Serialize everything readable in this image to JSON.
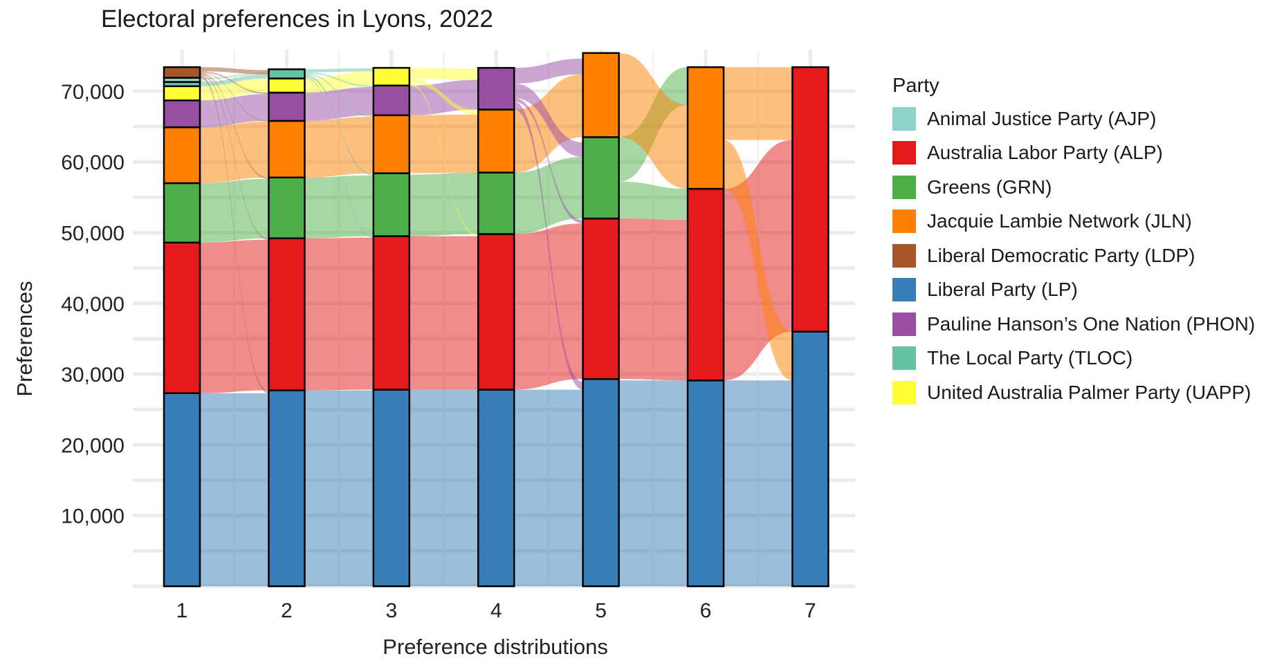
{
  "chart_data": {
    "type": "alluvial",
    "title": "Electoral preferences in Lyons, 2022",
    "xlabel": "Preference distributions",
    "ylabel": "Preferences",
    "categories": [
      "1",
      "2",
      "3",
      "4",
      "5",
      "6",
      "7"
    ],
    "y_ticks": [
      "10,000",
      "20,000",
      "30,000",
      "40,000",
      "50,000",
      "60,000",
      "70,000"
    ],
    "y_tick_values": [
      10000,
      20000,
      30000,
      40000,
      50000,
      60000,
      70000
    ],
    "ylim": [
      0,
      73500
    ],
    "grid": true,
    "legend_title": "Party",
    "legend_position": "right",
    "stack_order": [
      "LP",
      "ALP",
      "GRN",
      "JLN",
      "PHON",
      "UAPP",
      "TLOC",
      "AJP",
      "LDP"
    ],
    "parties": [
      {
        "code": "AJP",
        "name": "Animal Justice Party (AJP)",
        "color": "#8dd3c7"
      },
      {
        "code": "ALP",
        "name": "Australia Labor Party (ALP)",
        "color": "#e41a1c"
      },
      {
        "code": "GRN",
        "name": "Greens (GRN)",
        "color": "#4daf4a"
      },
      {
        "code": "JLN",
        "name": "Jacquie Lambie Network (JLN)",
        "color": "#ff7f00"
      },
      {
        "code": "LDP",
        "name": "Liberal Democratic Party (LDP)",
        "color": "#a65628"
      },
      {
        "code": "LP",
        "name": "Liberal Party (LP)",
        "color": "#377eb8"
      },
      {
        "code": "PHON",
        "name": "Pauline Hanson’s One Nation (PHON)",
        "color": "#984ea3"
      },
      {
        "code": "TLOC",
        "name": "The Local Party (TLOC)",
        "color": "#66c2a5"
      },
      {
        "code": "UAPP",
        "name": "United Australia Palmer Party (UAPP)",
        "color": "#ffff33"
      }
    ],
    "series": [
      {
        "name": "LP",
        "values": [
          27300,
          27700,
          27800,
          27800,
          29300,
          29100,
          36000
        ]
      },
      {
        "name": "ALP",
        "values": [
          21300,
          21500,
          21700,
          22000,
          22700,
          27100,
          37400
        ]
      },
      {
        "name": "GRN",
        "values": [
          8400,
          8600,
          8900,
          8700,
          11500,
          0,
          0
        ]
      },
      {
        "name": "JLN",
        "values": [
          7900,
          8000,
          8200,
          8900,
          11900,
          17200,
          0
        ]
      },
      {
        "name": "PHON",
        "values": [
          3800,
          4000,
          4200,
          5900,
          0,
          0,
          0
        ]
      },
      {
        "name": "UAPP",
        "values": [
          2000,
          2000,
          2500,
          0,
          0,
          0,
          0
        ]
      },
      {
        "name": "TLOC",
        "values": [
          600,
          1300,
          0,
          0,
          0,
          0,
          0
        ]
      },
      {
        "name": "AJP",
        "values": [
          600,
          0,
          0,
          0,
          0,
          0,
          0
        ]
      },
      {
        "name": "LDP",
        "values": [
          1500,
          0,
          0,
          0,
          0,
          0,
          0
        ]
      }
    ]
  }
}
